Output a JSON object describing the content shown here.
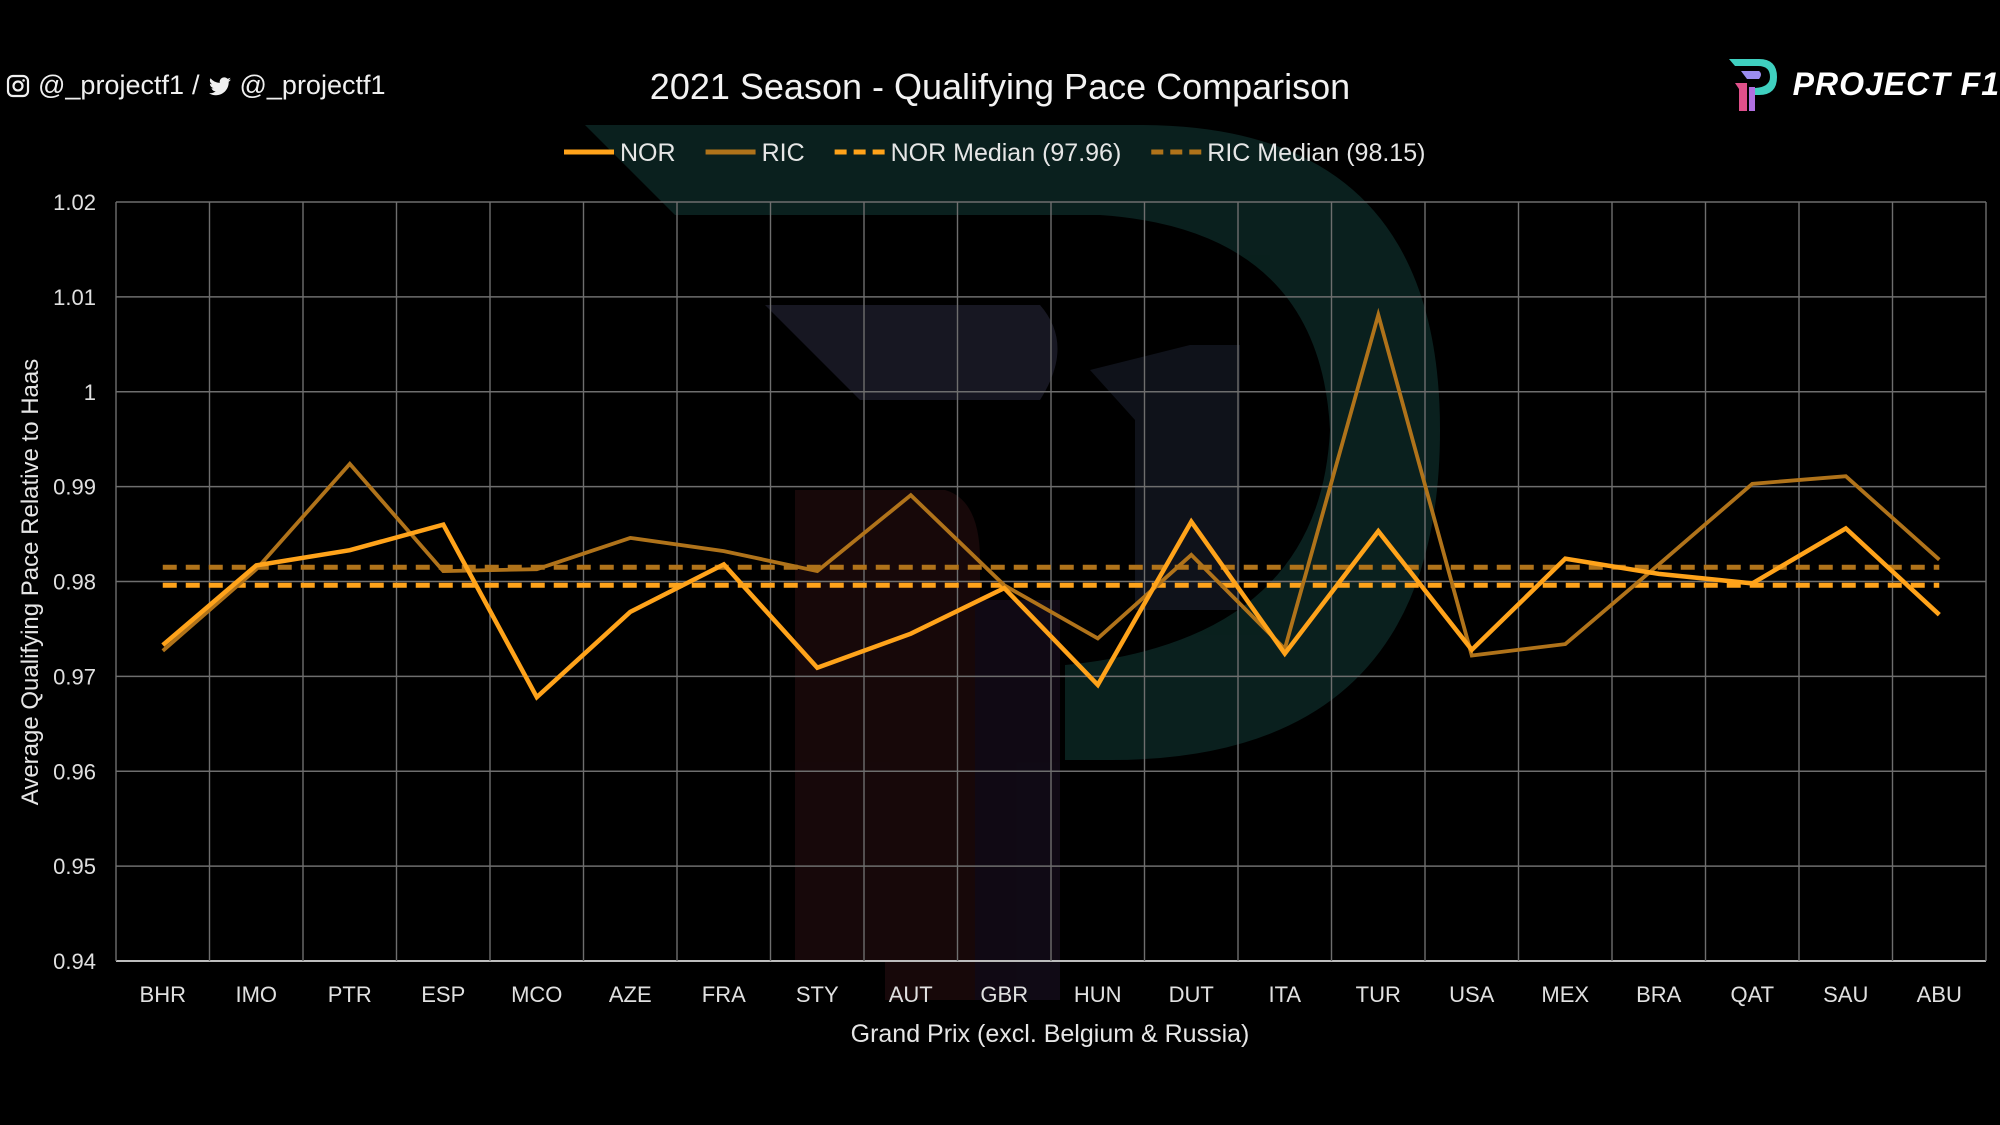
{
  "social": {
    "instagram_handle": "@_projectf1",
    "separator": "/",
    "twitter_handle": "@_projectf1"
  },
  "brand": {
    "name": "PROJECT F1"
  },
  "colors": {
    "nor": "#ffa31a",
    "ric": "#b0731a",
    "grid": "#8a8a8a",
    "background": "#000000"
  },
  "chart_data": {
    "type": "line",
    "title": "2021 Season - Qualifying Pace Comparison",
    "xlabel": "Grand Prix (excl. Belgium & Russia)",
    "ylabel": "Average Qualifying Pace Relative to Haas",
    "ylim": [
      0.94,
      1.02
    ],
    "yticks": [
      "0.94",
      "0.95",
      "0.96",
      "0.97",
      "0.98",
      "0.99",
      "1",
      "1.01",
      "1.02"
    ],
    "grid": true,
    "legend_position": "top",
    "categories": [
      "BHR",
      "IMO",
      "PTR",
      "ESP",
      "MCO",
      "AZE",
      "FRA",
      "STY",
      "AUT",
      "GBR",
      "HUN",
      "DUT",
      "ITA",
      "TUR",
      "USA",
      "MEX",
      "BRA",
      "QAT",
      "SAU",
      "ABU"
    ],
    "series": [
      {
        "name": "NOR",
        "style": "solid",
        "color": "#ffa31a",
        "values": [
          0.9733,
          0.9817,
          0.9833,
          0.986,
          0.9678,
          0.9768,
          0.9818,
          0.9709,
          0.9745,
          0.9793,
          0.9691,
          0.9863,
          0.9724,
          0.9853,
          0.9728,
          0.9824,
          0.9808,
          0.9798,
          0.9856,
          0.9765
        ]
      },
      {
        "name": "RIC",
        "style": "solid",
        "color": "#b0731a",
        "values": [
          0.9727,
          0.9813,
          0.9924,
          0.9811,
          0.9813,
          0.9846,
          0.9832,
          0.9811,
          0.9891,
          0.9796,
          0.974,
          0.9828,
          0.9729,
          1.0081,
          0.9722,
          0.9734,
          0.9818,
          0.9903,
          0.9911,
          0.9823
        ]
      },
      {
        "name": "NOR Median (97.96)",
        "style": "dashed",
        "color": "#ffa31a",
        "constant": 0.9796
      },
      {
        "name": "RIC Median (98.15)",
        "style": "dashed",
        "color": "#b0731a",
        "constant": 0.9815
      }
    ]
  }
}
